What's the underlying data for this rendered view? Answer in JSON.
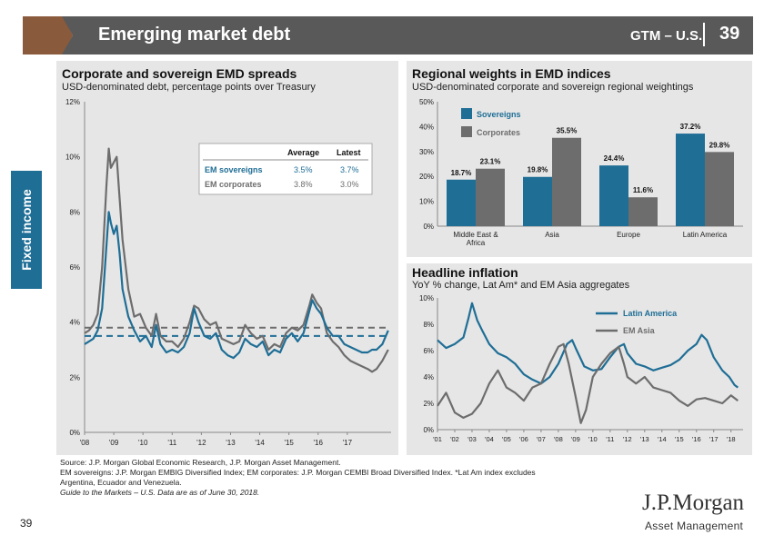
{
  "header": {
    "title": "Emerging market debt",
    "gtm_label": "GTM – U.S.",
    "page": "39"
  },
  "side_tab": {
    "label": "Fixed income"
  },
  "page_number": "39",
  "panels": {
    "spreads": {
      "title": "Corporate and sovereign EMD spreads",
      "subtitle": "USD-denominated debt, percentage points over Treasury"
    },
    "weights": {
      "title": "Regional weights in EMD indices",
      "subtitle": "USD-denominated corporate and sovereign regional weightings"
    },
    "inflation": {
      "title": "Headline inflation",
      "subtitle": "YoY % change, Lat Am* and EM Asia aggregates"
    }
  },
  "footer": {
    "line1": "Source: J.P. Morgan Global Economic Research, J.P. Morgan Asset Management.",
    "line2": "EM sovereigns: J.P. Morgan EMBIG Diversified Index; EM corporates: J.P. Morgan CEMBI Broad Diversified Index. *Lat Am index excludes",
    "line3": "Argentina, Ecuador and Venezuela.",
    "line4": "Guide to the Markets – U.S. Data are as of June 30, 2018."
  },
  "logo": {
    "name": "J.P.Morgan",
    "sub": "Asset Management"
  },
  "colors": {
    "blue": "#1f6e96",
    "grey": "#6d6d6d",
    "panel_bg": "#e6e6e6",
    "header_grey": "#595959",
    "brown": "#8a5a3c"
  },
  "chart_data": [
    {
      "type": "line",
      "title": "Corporate and sovereign EMD spreads",
      "ylabel": "percentage points over Treasury",
      "ylim": [
        0,
        12
      ],
      "yticks": [
        "0%",
        "2%",
        "4%",
        "6%",
        "8%",
        "10%",
        "12%"
      ],
      "xlim": [
        2008,
        2018.5
      ],
      "xticks": [
        "'08",
        "'09",
        "'10",
        "'11",
        "'12",
        "'13",
        "'14",
        "'15",
        "'16",
        "'17"
      ],
      "table": {
        "headers": [
          "",
          "Average",
          "Latest"
        ],
        "rows": [
          {
            "label": "EM sovereigns",
            "average": "3.5%",
            "latest": "3.7%"
          },
          {
            "label": "EM corporates",
            "average": "3.8%",
            "latest": "3.0%"
          }
        ]
      },
      "series": [
        {
          "name": "EM sovereigns",
          "average": 3.5,
          "latest": 3.7,
          "x": [
            2008.0,
            2008.15,
            2008.3,
            2008.45,
            2008.6,
            2008.75,
            2008.83,
            2008.9,
            2009.0,
            2009.1,
            2009.2,
            2009.3,
            2009.5,
            2009.7,
            2009.9,
            2010.1,
            2010.3,
            2010.45,
            2010.6,
            2010.8,
            2011.0,
            2011.2,
            2011.4,
            2011.6,
            2011.75,
            2011.9,
            2012.1,
            2012.3,
            2012.5,
            2012.7,
            2012.9,
            2013.1,
            2013.3,
            2013.5,
            2013.7,
            2013.9,
            2014.1,
            2014.3,
            2014.5,
            2014.7,
            2014.9,
            2015.1,
            2015.3,
            2015.5,
            2015.7,
            2015.8,
            2015.95,
            2016.1,
            2016.3,
            2016.5,
            2016.7,
            2016.9,
            2017.1,
            2017.3,
            2017.5,
            2017.7,
            2017.85,
            2018.0,
            2018.2,
            2018.4
          ],
          "y": [
            3.2,
            3.3,
            3.4,
            3.7,
            4.5,
            6.8,
            8.0,
            7.6,
            7.2,
            7.5,
            6.5,
            5.2,
            4.2,
            3.7,
            3.3,
            3.5,
            3.1,
            3.9,
            3.2,
            2.9,
            3.0,
            2.9,
            3.1,
            3.6,
            4.5,
            4.0,
            3.5,
            3.4,
            3.6,
            3.0,
            2.8,
            2.7,
            2.9,
            3.4,
            3.2,
            3.1,
            3.3,
            2.8,
            3.0,
            2.9,
            3.4,
            3.6,
            3.3,
            3.6,
            4.4,
            4.8,
            4.5,
            4.3,
            3.8,
            3.5,
            3.5,
            3.2,
            3.1,
            3.0,
            2.9,
            2.9,
            3.0,
            3.0,
            3.2,
            3.7
          ]
        },
        {
          "name": "EM corporates",
          "average": 3.8,
          "latest": 3.0,
          "x": [
            2008.0,
            2008.15,
            2008.3,
            2008.45,
            2008.6,
            2008.75,
            2008.83,
            2008.9,
            2009.0,
            2009.1,
            2009.2,
            2009.3,
            2009.5,
            2009.7,
            2009.9,
            2010.1,
            2010.3,
            2010.45,
            2010.6,
            2010.8,
            2011.0,
            2011.2,
            2011.4,
            2011.6,
            2011.75,
            2011.9,
            2012.1,
            2012.3,
            2012.5,
            2012.7,
            2012.9,
            2013.1,
            2013.3,
            2013.5,
            2013.7,
            2013.9,
            2014.1,
            2014.3,
            2014.5,
            2014.7,
            2014.9,
            2015.1,
            2015.3,
            2015.5,
            2015.7,
            2015.8,
            2015.95,
            2016.1,
            2016.3,
            2016.5,
            2016.7,
            2016.9,
            2017.1,
            2017.3,
            2017.5,
            2017.7,
            2017.85,
            2018.0,
            2018.2,
            2018.4
          ],
          "y": [
            3.6,
            3.7,
            3.9,
            4.3,
            6.0,
            9.0,
            10.3,
            9.6,
            9.8,
            10.0,
            8.5,
            7.0,
            5.2,
            4.2,
            4.3,
            3.8,
            3.5,
            4.3,
            3.5,
            3.3,
            3.3,
            3.1,
            3.4,
            4.0,
            4.6,
            4.5,
            4.1,
            3.9,
            4.0,
            3.4,
            3.3,
            3.2,
            3.3,
            3.9,
            3.6,
            3.4,
            3.5,
            3.0,
            3.2,
            3.1,
            3.6,
            3.8,
            3.7,
            3.9,
            4.6,
            5.0,
            4.7,
            4.5,
            3.6,
            3.3,
            3.1,
            2.8,
            2.6,
            2.5,
            2.4,
            2.3,
            2.2,
            2.3,
            2.6,
            3.0
          ]
        }
      ]
    },
    {
      "type": "bar",
      "title": "Regional weights in EMD indices",
      "categories": [
        "Middle East & Africa",
        "Asia",
        "Europe",
        "Latin America"
      ],
      "ylim": [
        0,
        50
      ],
      "yticks": [
        "0%",
        "10%",
        "20%",
        "30%",
        "40%",
        "50%"
      ],
      "legend_position": "top-left",
      "series": [
        {
          "name": "Sovereigns",
          "values": [
            18.7,
            19.8,
            24.4,
            37.2
          ],
          "labels": [
            "18.7%",
            "19.8%",
            "24.4%",
            "37.2%"
          ]
        },
        {
          "name": "Corporates",
          "values": [
            23.1,
            35.5,
            11.6,
            29.8
          ],
          "labels": [
            "23.1%",
            "35.5%",
            "11.6%",
            "29.8%"
          ]
        }
      ]
    },
    {
      "type": "line",
      "title": "Headline inflation",
      "ylim": [
        0,
        10
      ],
      "yticks": [
        "0%",
        "2%",
        "4%",
        "6%",
        "8%",
        "10%"
      ],
      "xlim": [
        2001,
        2018.7
      ],
      "xticks": [
        "'01",
        "'02",
        "'03",
        "'04",
        "'05",
        "'06",
        "'07",
        "'08",
        "'09",
        "'10",
        "'11",
        "'12",
        "'13",
        "'14",
        "'15",
        "'16",
        "'17",
        "'18"
      ],
      "legend_position": "top-right",
      "series": [
        {
          "name": "Latin America",
          "x": [
            2001.0,
            2001.5,
            2002.0,
            2002.5,
            2002.8,
            2003.0,
            2003.3,
            2003.6,
            2004.0,
            2004.5,
            2005.0,
            2005.5,
            2006.0,
            2006.5,
            2007.0,
            2007.5,
            2008.0,
            2008.5,
            2008.8,
            2009.0,
            2009.5,
            2010.0,
            2010.5,
            2011.0,
            2011.5,
            2011.8,
            2012.0,
            2012.5,
            2013.0,
            2013.5,
            2014.0,
            2014.5,
            2015.0,
            2015.5,
            2016.0,
            2016.3,
            2016.6,
            2017.0,
            2017.5,
            2017.9,
            2018.2,
            2018.4
          ],
          "y": [
            6.8,
            6.2,
            6.5,
            7.0,
            8.5,
            9.6,
            8.3,
            7.5,
            6.5,
            5.8,
            5.5,
            5.0,
            4.2,
            3.8,
            3.5,
            4.0,
            5.0,
            6.5,
            6.8,
            6.2,
            4.8,
            4.5,
            4.6,
            5.5,
            6.3,
            6.5,
            5.8,
            5.0,
            4.8,
            4.5,
            4.7,
            4.9,
            5.3,
            6.0,
            6.5,
            7.2,
            6.8,
            5.5,
            4.5,
            4.0,
            3.4,
            3.2
          ]
        },
        {
          "name": "EM Asia",
          "x": [
            2001.0,
            2001.5,
            2002.0,
            2002.5,
            2003.0,
            2003.5,
            2004.0,
            2004.5,
            2005.0,
            2005.5,
            2006.0,
            2006.5,
            2007.0,
            2007.5,
            2008.0,
            2008.3,
            2008.6,
            2009.0,
            2009.3,
            2009.6,
            2010.0,
            2010.5,
            2011.0,
            2011.5,
            2011.8,
            2012.0,
            2012.5,
            2013.0,
            2013.5,
            2014.0,
            2014.5,
            2015.0,
            2015.5,
            2016.0,
            2016.5,
            2017.0,
            2017.5,
            2018.0,
            2018.4
          ],
          "y": [
            1.8,
            2.8,
            1.3,
            0.9,
            1.2,
            2.0,
            3.5,
            4.5,
            3.2,
            2.8,
            2.2,
            3.2,
            3.5,
            5.0,
            6.3,
            6.5,
            5.0,
            2.5,
            0.5,
            1.5,
            4.0,
            5.0,
            5.8,
            6.3,
            5.0,
            4.0,
            3.5,
            4.0,
            3.2,
            3.0,
            2.8,
            2.2,
            1.8,
            2.3,
            2.4,
            2.2,
            2.0,
            2.6,
            2.2
          ]
        }
      ]
    }
  ]
}
